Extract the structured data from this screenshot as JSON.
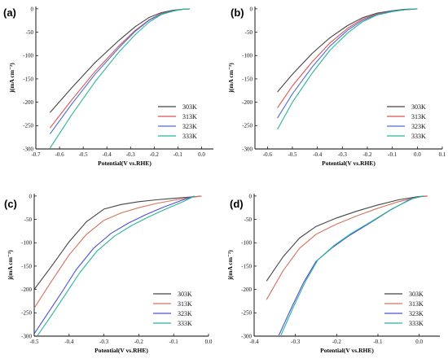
{
  "chart_data": [
    {
      "panel": "(a)",
      "type": "line",
      "xlabel": "Potential(V vs.RHE)",
      "ylabel": "j(mA cm⁻²)",
      "xlim": [
        -0.7,
        0.05
      ],
      "ylim": [
        -300,
        5
      ],
      "xticks": [
        -0.7,
        -0.6,
        -0.5,
        -0.4,
        -0.3,
        -0.2,
        -0.1,
        0.0
      ],
      "xtick_labels": [
        "-0.7",
        "-0.6",
        "-0.5",
        "-0.4",
        "-0.3",
        "-0.2",
        "-0.1",
        "0.0"
      ],
      "yticks": [
        0,
        -50,
        -100,
        -150,
        -200,
        -250,
        -300
      ],
      "ytick_labels": [
        "0",
        "-50",
        "-100",
        "-150",
        "-200",
        "-250",
        "-300"
      ],
      "legend_position": "bottom-right",
      "series": [
        {
          "name": "303K",
          "color": "#444444",
          "x": [
            -0.64,
            -0.55,
            -0.45,
            -0.35,
            -0.28,
            -0.22,
            -0.17,
            -0.12,
            -0.08,
            -0.05
          ],
          "y": [
            -222,
            -170,
            -115,
            -68,
            -38,
            -18,
            -8,
            -3,
            -1,
            0
          ]
        },
        {
          "name": "313K",
          "color": "#e0504f",
          "x": [
            -0.64,
            -0.55,
            -0.45,
            -0.35,
            -0.28,
            -0.22,
            -0.17,
            -0.12,
            -0.08,
            -0.05
          ],
          "y": [
            -255,
            -196,
            -134,
            -80,
            -46,
            -23,
            -10,
            -4,
            -1,
            0
          ]
        },
        {
          "name": "323K",
          "color": "#4a6fd8",
          "x": [
            -0.64,
            -0.55,
            -0.45,
            -0.35,
            -0.28,
            -0.22,
            -0.17,
            -0.12,
            -0.08,
            -0.05
          ],
          "y": [
            -268,
            -205,
            -140,
            -84,
            -48,
            -24,
            -11,
            -4,
            -1,
            0
          ]
        },
        {
          "name": "333K",
          "color": "#2bb59a",
          "x": [
            -0.64,
            -0.55,
            -0.45,
            -0.35,
            -0.28,
            -0.22,
            -0.17,
            -0.12,
            -0.08,
            -0.05
          ],
          "y": [
            -298,
            -228,
            -156,
            -93,
            -55,
            -28,
            -12,
            -5,
            -1,
            0
          ]
        }
      ]
    },
    {
      "panel": "(b)",
      "type": "line",
      "xlabel": "Potential(V vs.RHE)",
      "ylabel": "j(mA cm⁻²)",
      "xlim": [
        -0.65,
        0.1
      ],
      "ylim": [
        -300,
        5
      ],
      "xticks": [
        -0.6,
        -0.5,
        -0.4,
        -0.3,
        -0.2,
        -0.1,
        0.0,
        0.1
      ],
      "xtick_labels": [
        "-0.6",
        "-0.5",
        "-0.4",
        "-0.3",
        "-0.2",
        "-0.1",
        "0.0",
        "0.1"
      ],
      "yticks": [
        0,
        -50,
        -100,
        -150,
        -200,
        -250,
        -300
      ],
      "ytick_labels": [
        "0",
        "-50",
        "-100",
        "-150",
        "-200",
        "-250",
        "-300"
      ],
      "legend_position": "bottom-right",
      "series": [
        {
          "name": "303K",
          "color": "#444444",
          "x": [
            -0.56,
            -0.5,
            -0.42,
            -0.35,
            -0.28,
            -0.22,
            -0.16,
            -0.1,
            -0.05,
            0.0
          ],
          "y": [
            -178,
            -140,
            -95,
            -62,
            -36,
            -19,
            -9,
            -4,
            -1,
            0
          ]
        },
        {
          "name": "313K",
          "color": "#e0504f",
          "x": [
            -0.56,
            -0.5,
            -0.42,
            -0.35,
            -0.28,
            -0.22,
            -0.16,
            -0.1,
            -0.05,
            0.0
          ],
          "y": [
            -212,
            -165,
            -113,
            -73,
            -42,
            -22,
            -11,
            -5,
            -2,
            0
          ]
        },
        {
          "name": "323K",
          "color": "#4a6fd8",
          "x": [
            -0.56,
            -0.5,
            -0.42,
            -0.35,
            -0.28,
            -0.22,
            -0.16,
            -0.1,
            -0.05,
            0.0
          ],
          "y": [
            -234,
            -182,
            -124,
            -80,
            -46,
            -25,
            -12,
            -5,
            -2,
            0
          ]
        },
        {
          "name": "333K",
          "color": "#2bb59a",
          "x": [
            -0.56,
            -0.5,
            -0.42,
            -0.35,
            -0.28,
            -0.22,
            -0.16,
            -0.1,
            -0.05,
            0.0
          ],
          "y": [
            -258,
            -200,
            -137,
            -89,
            -52,
            -28,
            -13,
            -6,
            -2,
            0
          ]
        }
      ]
    },
    {
      "panel": "(c)",
      "type": "line",
      "xlabel": "Potential(V vs.RHE)",
      "ylabel": "j(mA cm⁻²)",
      "xlim": [
        -0.5,
        0.0
      ],
      "ylim": [
        -300,
        5
      ],
      "xticks": [
        -0.5,
        -0.4,
        -0.3,
        -0.2,
        -0.1,
        0.0
      ],
      "xtick_labels": [
        "-0.5",
        "-0.4",
        "-0.3",
        "-0.2",
        "-0.1",
        "0.0"
      ],
      "yticks": [
        0,
        -50,
        -100,
        -150,
        -200,
        -250,
        -300
      ],
      "ytick_labels": [
        "0",
        "-50",
        "-100",
        "-150",
        "-200",
        "-250",
        "-300"
      ],
      "legend_position": "bottom-right",
      "series": [
        {
          "name": "303K",
          "color": "#444444",
          "x": [
            -0.5,
            -0.45,
            -0.4,
            -0.35,
            -0.3,
            -0.25,
            -0.2,
            -0.15,
            -0.1,
            -0.05,
            -0.02
          ],
          "y": [
            -200,
            -150,
            -98,
            -55,
            -28,
            -18,
            -12,
            -8,
            -5,
            -2,
            0
          ]
        },
        {
          "name": "313K",
          "color": "#d4735a",
          "x": [
            -0.5,
            -0.45,
            -0.4,
            -0.35,
            -0.3,
            -0.25,
            -0.2,
            -0.15,
            -0.1,
            -0.05,
            -0.02
          ],
          "y": [
            -240,
            -182,
            -126,
            -82,
            -52,
            -36,
            -25,
            -16,
            -9,
            -3,
            0
          ]
        },
        {
          "name": "323K",
          "color": "#4a4fd8",
          "x": [
            -0.5,
            -0.46,
            -0.42,
            -0.38,
            -0.33,
            -0.28,
            -0.23,
            -0.18,
            -0.13,
            -0.08,
            -0.04
          ],
          "y": [
            -295,
            -250,
            -205,
            -158,
            -112,
            -80,
            -58,
            -40,
            -24,
            -10,
            0
          ]
        },
        {
          "name": "333K",
          "color": "#2bb59a",
          "x": [
            -0.49,
            -0.45,
            -0.41,
            -0.37,
            -0.32,
            -0.27,
            -0.22,
            -0.17,
            -0.12,
            -0.07,
            -0.04
          ],
          "y": [
            -298,
            -255,
            -210,
            -165,
            -118,
            -86,
            -63,
            -44,
            -27,
            -11,
            0
          ]
        }
      ]
    },
    {
      "panel": "(d)",
      "type": "line",
      "xlabel": "Potential(V vs.RHE)",
      "ylabel": "j(mA cm⁻²)",
      "xlim": [
        -0.4,
        0.05
      ],
      "ylim": [
        -300,
        5
      ],
      "xticks": [
        -0.4,
        -0.3,
        -0.2,
        -0.1,
        0.0
      ],
      "xtick_labels": [
        "-0.4",
        "-0.3",
        "-0.2",
        "-0.1",
        "0.0"
      ],
      "yticks": [
        0,
        -50,
        -100,
        -150,
        -200,
        -250,
        -300
      ],
      "ytick_labels": [
        "0",
        "-50",
        "-100",
        "-150",
        "-200",
        "-250",
        "-300"
      ],
      "legend_position": "bottom-right",
      "series": [
        {
          "name": "303K",
          "color": "#444444",
          "x": [
            -0.37,
            -0.33,
            -0.29,
            -0.25,
            -0.2,
            -0.15,
            -0.1,
            -0.05,
            0.0,
            0.02
          ],
          "y": [
            -182,
            -130,
            -90,
            -65,
            -47,
            -32,
            -19,
            -8,
            -1,
            0
          ]
        },
        {
          "name": "313K",
          "color": "#d4735a",
          "x": [
            -0.37,
            -0.33,
            -0.29,
            -0.25,
            -0.2,
            -0.15,
            -0.1,
            -0.05,
            0.0,
            0.02
          ],
          "y": [
            -222,
            -160,
            -112,
            -82,
            -60,
            -42,
            -26,
            -12,
            -2,
            0
          ]
        },
        {
          "name": "323K",
          "color": "#4a4fd8",
          "x": [
            -0.34,
            -0.31,
            -0.28,
            -0.25,
            -0.21,
            -0.17,
            -0.12,
            -0.07,
            -0.02,
            0.01
          ],
          "y": [
            -298,
            -240,
            -185,
            -140,
            -110,
            -85,
            -58,
            -30,
            -6,
            0
          ]
        },
        {
          "name": "333K",
          "color": "#2bb59a",
          "x": [
            -0.335,
            -0.305,
            -0.275,
            -0.245,
            -0.205,
            -0.165,
            -0.115,
            -0.065,
            -0.015,
            0.01
          ],
          "y": [
            -298,
            -238,
            -182,
            -136,
            -105,
            -80,
            -54,
            -27,
            -5,
            0
          ]
        }
      ]
    }
  ]
}
